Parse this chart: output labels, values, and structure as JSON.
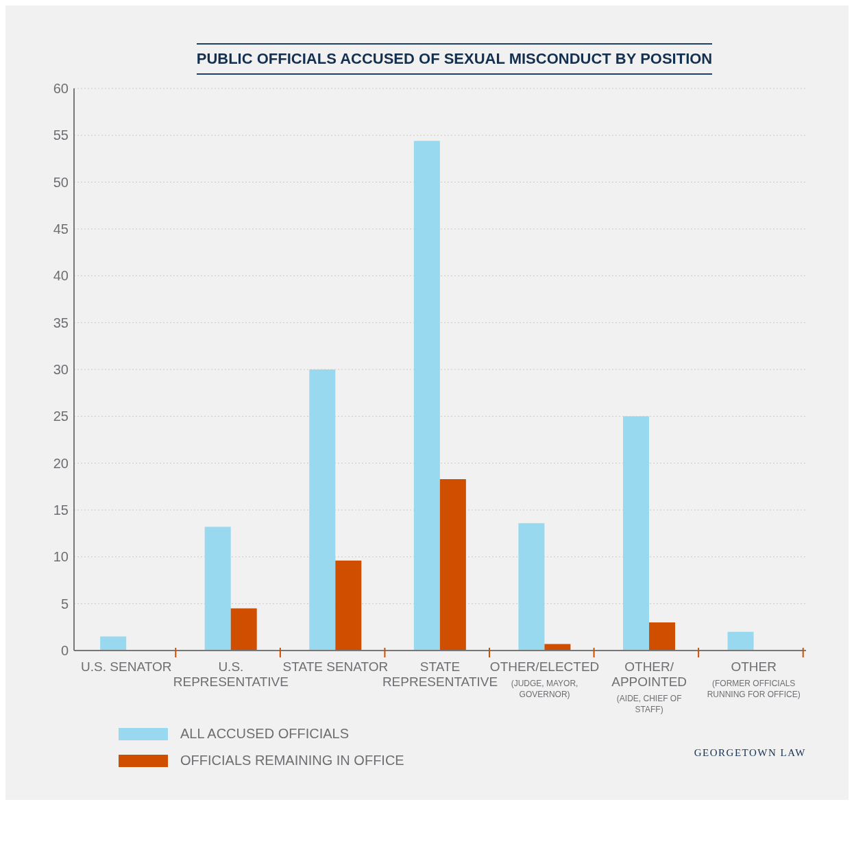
{
  "chart_data": {
    "type": "bar",
    "title": "PUBLIC OFFICIALS ACCUSED OF SEXUAL MISCONDUCT BY POSITION",
    "categories": [
      "U.S. SENATOR",
      "U.S. REPRESENTATIVE",
      "STATE SENATOR",
      "STATE REPRESENTATIVE",
      "OTHER/ELECTED (JUDGE, MAYOR, GOVERNOR)",
      "OTHER/ APPOINTED (AIDE, CHIEF OF STAFF)",
      "OTHER (FORMER OFFICIALS RUNNING FOR OFFICE)"
    ],
    "series": [
      {
        "name": "ALL ACCUSED OFFICIALS",
        "color": "#98d9f0",
        "values": [
          1.5,
          13.2,
          30,
          54.4,
          13.6,
          25,
          2
        ]
      },
      {
        "name": "OFFICIALS REMAINING IN OFFICE",
        "color": "#d04e00",
        "values": [
          0,
          4.5,
          9.6,
          18.3,
          0.7,
          3,
          0
        ]
      }
    ],
    "ylim": [
      0,
      60
    ],
    "yticks": [
      0,
      5,
      10,
      15,
      20,
      25,
      30,
      35,
      40,
      45,
      50,
      55,
      60
    ],
    "grid": "y",
    "legend": "bottom left",
    "annotations": [
      "GEORGETOWN LAW"
    ]
  }
}
